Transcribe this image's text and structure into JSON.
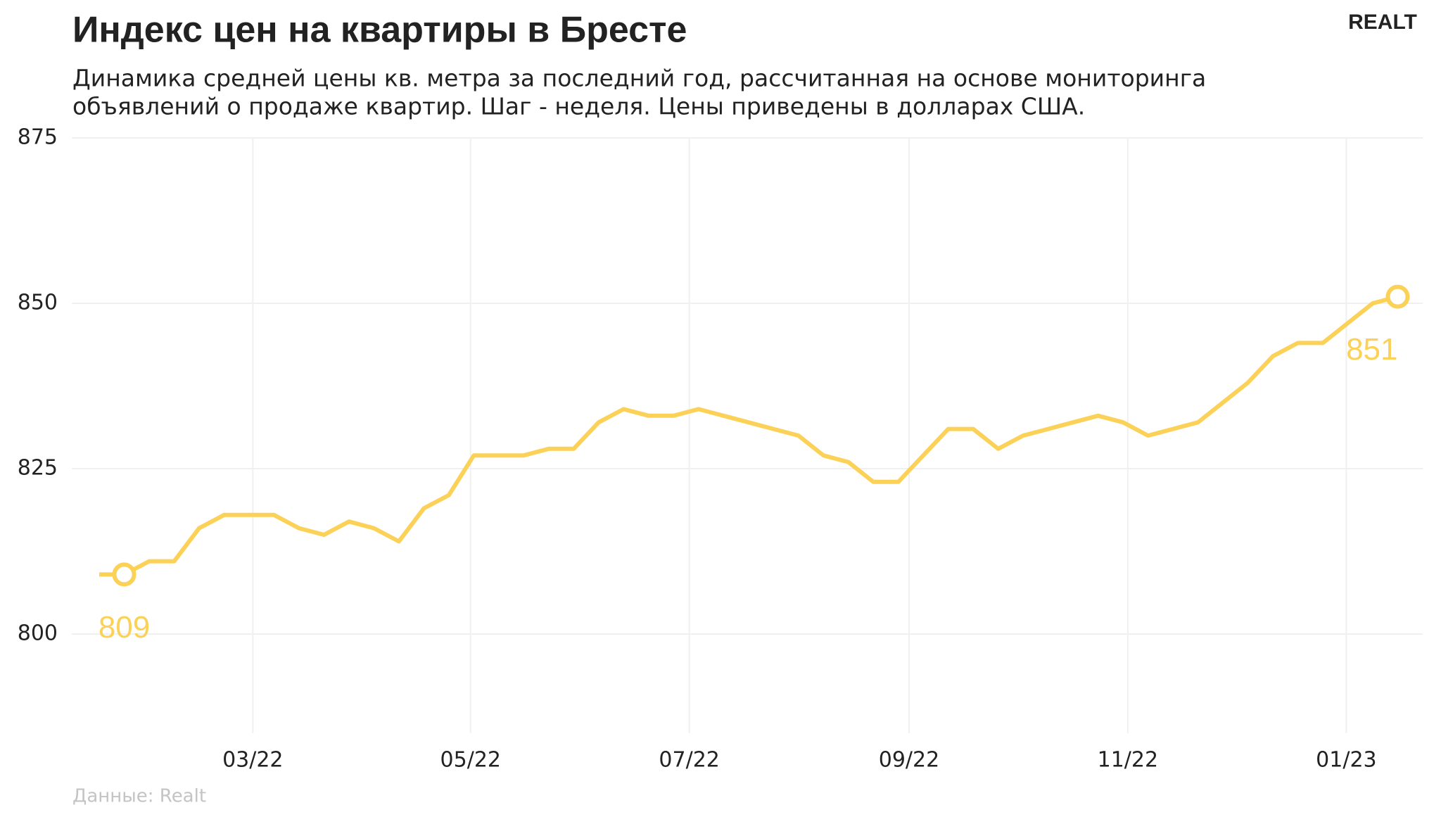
{
  "chart_data": {
    "type": "line",
    "title": "Индекс цен на квартиры в Бресте",
    "subtitle": [
      "Динамика средней цены кв. метра за последний год, рассчитанная на основе мониторинга",
      "объявлений о продаже квартир. Шаг - неделя. Цены приведены в долларах США."
    ],
    "source": "Данные: Realt",
    "logo": "REALT",
    "x": [
      0,
      1,
      2,
      3,
      4,
      5,
      6,
      7,
      8,
      9,
      10,
      11,
      12,
      13,
      14,
      15,
      16,
      17,
      18,
      19,
      20,
      21,
      22,
      23,
      24,
      25,
      26,
      27,
      28,
      29,
      30,
      31,
      32,
      33,
      34,
      35,
      36,
      37,
      38,
      39,
      40,
      41,
      42,
      43,
      44,
      45,
      46,
      47,
      48,
      49,
      50,
      51,
      52
    ],
    "series": [
      {
        "color": "#fbd157",
        "values": [
          809,
          809,
          811,
          811,
          816,
          818,
          818,
          818,
          816,
          815,
          817,
          816,
          814,
          819,
          821,
          827,
          827,
          827,
          828,
          828,
          832,
          834,
          833,
          833,
          834,
          833,
          832,
          831,
          830,
          827,
          826,
          823,
          823,
          827,
          831,
          831,
          828,
          830,
          831,
          832,
          833,
          832,
          830,
          831,
          832,
          835,
          838,
          842,
          844,
          844,
          847,
          850,
          851
        ]
      }
    ],
    "xlim": [
      -1.1,
      53
    ],
    "xticks": [
      {
        "value": 6.15,
        "label": "03/22"
      },
      {
        "value": 14.87,
        "label": "05/22"
      },
      {
        "value": 23.63,
        "label": "07/22"
      },
      {
        "value": 32.43,
        "label": "09/22"
      },
      {
        "value": 41.19,
        "label": "11/22"
      },
      {
        "value": 49.94,
        "label": "01/23"
      }
    ],
    "ylim": [
      785,
      875
    ],
    "yticks": [
      800,
      825,
      850,
      875
    ],
    "grid": true
  }
}
